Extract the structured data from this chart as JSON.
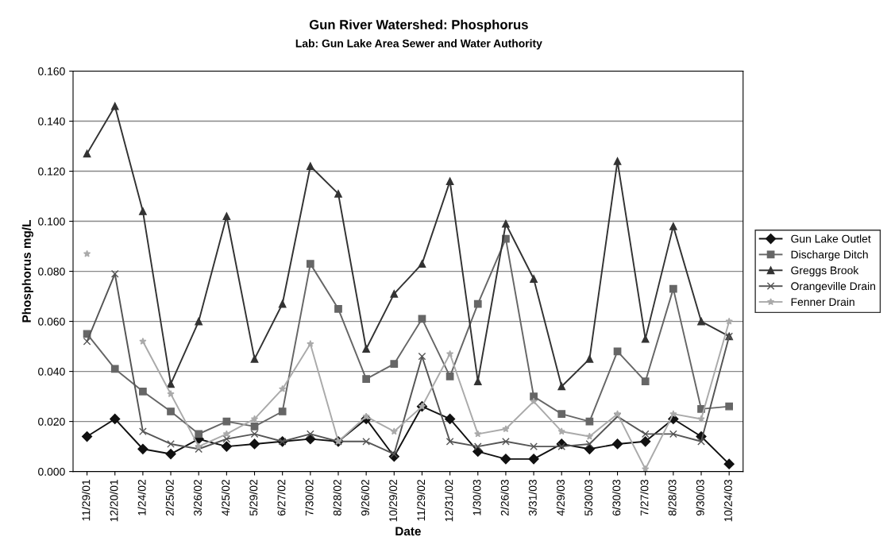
{
  "chart_data": {
    "type": "line",
    "title": "Gun River Watershed: Phosphorus",
    "subtitle": "Lab: Gun Lake Area Sewer and Water Authority",
    "xlabel": "Date",
    "ylabel": "Phosphorus mg/L",
    "categories": [
      "11/29/01",
      "12/20/01",
      "1/24/02",
      "2/25/02",
      "3/26/02",
      "4/25/02",
      "5/29/02",
      "6/27/02",
      "7/30/02",
      "8/28/02",
      "9/26/02",
      "10/29/02",
      "11/29/02",
      "12/31/02",
      "1/30/03",
      "2/26/03",
      "3/31/03",
      "4/29/03",
      "5/30/03",
      "6/30/03",
      "7/27/03",
      "8/28/03",
      "9/30/03",
      "10/24/03"
    ],
    "series": [
      {
        "name": "Gun Lake Outlet",
        "color": "#111111",
        "marker": "diamond",
        "values": [
          0.014,
          0.021,
          0.009,
          0.007,
          0.013,
          0.01,
          0.011,
          0.012,
          0.013,
          0.012,
          0.021,
          0.006,
          0.026,
          0.021,
          0.008,
          0.005,
          0.005,
          0.011,
          0.009,
          0.011,
          0.012,
          0.021,
          0.014,
          0.003
        ]
      },
      {
        "name": "Discharge Ditch",
        "color": "#666666",
        "marker": "square",
        "values": [
          0.055,
          0.041,
          0.032,
          0.024,
          0.015,
          0.02,
          0.018,
          0.024,
          0.083,
          0.065,
          0.037,
          0.043,
          0.061,
          0.038,
          0.067,
          0.093,
          0.03,
          0.023,
          0.02,
          0.048,
          0.036,
          0.073,
          0.025,
          0.026
        ]
      },
      {
        "name": "Greggs Brook",
        "color": "#333333",
        "marker": "triangle",
        "values": [
          0.127,
          0.146,
          0.104,
          0.035,
          0.06,
          0.102,
          0.045,
          0.067,
          0.122,
          0.111,
          0.049,
          0.071,
          0.083,
          0.116,
          0.036,
          0.099,
          0.077,
          0.034,
          0.045,
          0.124,
          0.053,
          0.098,
          0.06,
          0.054
        ]
      },
      {
        "name": "Orangeville Drain",
        "color": "#555555",
        "marker": "cross",
        "values": [
          0.052,
          0.079,
          0.016,
          0.011,
          0.009,
          0.013,
          0.015,
          0.012,
          0.015,
          0.012,
          0.012,
          0.007,
          0.046,
          0.012,
          0.01,
          0.012,
          0.01,
          0.01,
          0.011,
          0.022,
          0.015,
          0.015,
          0.012,
          0.054
        ]
      },
      {
        "name": "Fenner Drain",
        "color": "#aaaaaa",
        "marker": "star",
        "values": [
          0.087,
          null,
          0.052,
          0.031,
          0.01,
          0.015,
          0.021,
          0.033,
          0.051,
          0.012,
          0.022,
          0.016,
          0.026,
          0.047,
          0.015,
          0.017,
          0.028,
          0.016,
          0.014,
          0.023,
          0.001,
          0.023,
          0.021,
          0.06
        ]
      }
    ],
    "ylim": [
      0,
      0.16
    ],
    "yticks": [
      {
        "value": 0,
        "label": "0.000"
      },
      {
        "value": 0.02,
        "label": "0.020"
      },
      {
        "value": 0.04,
        "label": "0.040"
      },
      {
        "value": 0.06,
        "label": "0.060"
      },
      {
        "value": 0.08,
        "label": "0.080"
      },
      {
        "value": 0.1,
        "label": "0.100"
      },
      {
        "value": 0.12,
        "label": "0.120"
      },
      {
        "value": 0.14,
        "label": "0.140"
      },
      {
        "value": 0.16,
        "label": "0.160"
      }
    ],
    "grid": "y",
    "legend": "right",
    "line_style": "solid"
  }
}
